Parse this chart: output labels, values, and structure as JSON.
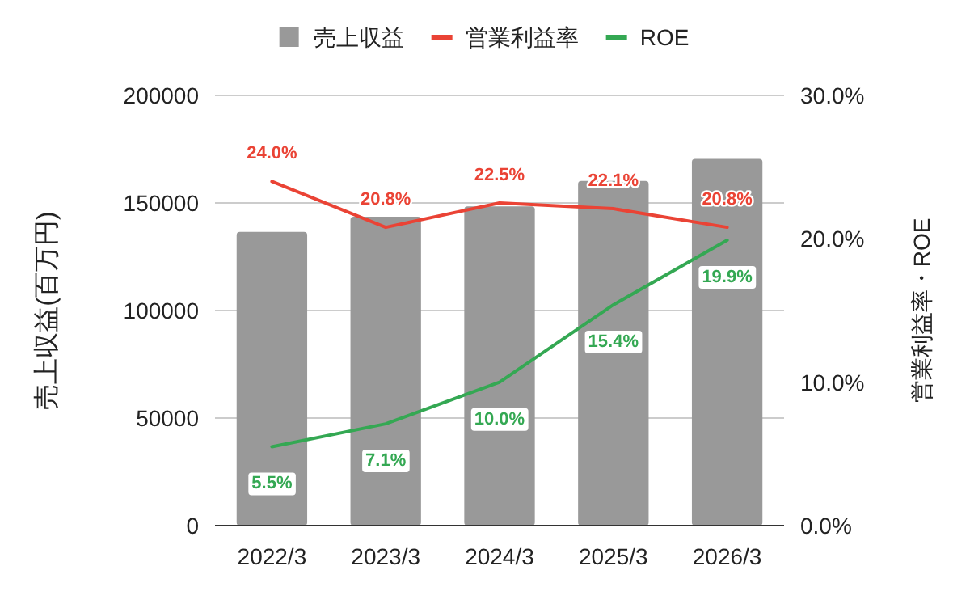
{
  "chart_data": {
    "type": "bar",
    "categories": [
      "2022/3",
      "2023/3",
      "2024/3",
      "2025/3",
      "2026/3"
    ],
    "series": [
      {
        "name": "売上収益",
        "color": "#999999",
        "values": [
          136600,
          143600,
          148400,
          160200,
          170500
        ]
      },
      {
        "name": "営業利益率",
        "type": "line",
        "axis": "y2",
        "color": "#ea4335",
        "values": [
          24.0,
          20.8,
          22.5,
          22.1,
          20.8
        ],
        "value_labels": [
          "24.0%",
          "20.8%",
          "22.5%",
          "22.1%",
          "20.8%"
        ]
      },
      {
        "name": "ROE",
        "type": "line",
        "axis": "y2",
        "color": "#34a853",
        "values": [
          5.5,
          7.1,
          10.0,
          15.4,
          19.9
        ],
        "value_labels": [
          "5.5%",
          "7.1%",
          "10.0%",
          "15.4%",
          "19.9%"
        ]
      }
    ],
    "ylabel": "売上収益(百万円)",
    "y2label": "営業利益率・ROE",
    "ylim": [
      0,
      200000
    ],
    "yticks": [
      0,
      50000,
      100000,
      150000,
      200000
    ],
    "y2lim": [
      0,
      30
    ],
    "y2ticks": [
      {
        "value": 0,
        "label": "0.0%"
      },
      {
        "value": 10,
        "label": "10.0%"
      },
      {
        "value": 20,
        "label": "20.0%"
      },
      {
        "value": 30,
        "label": "30.0%"
      }
    ],
    "grid": "y",
    "legend": "top"
  }
}
